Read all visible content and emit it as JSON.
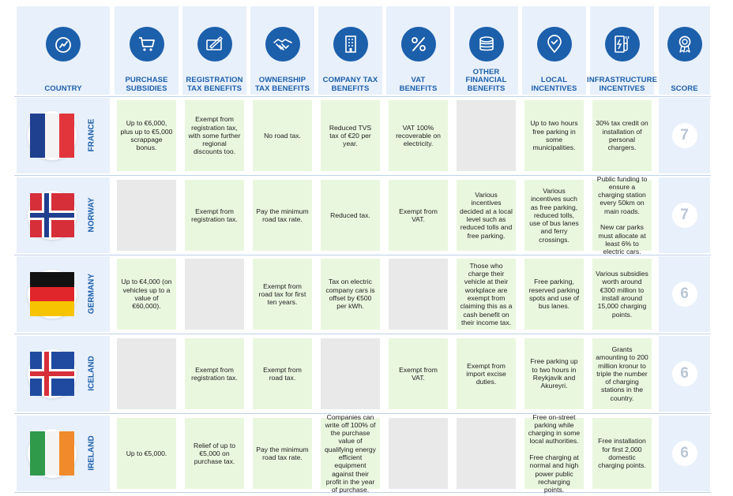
{
  "headers": {
    "country": "COUNTRY",
    "purchase": "PURCHASE\nSUBSIDIES",
    "registration": "REGISTRATION\nTAX BENEFITS",
    "ownership": "OWNERSHIP\nTAX BENEFITS",
    "company": "COMPANY TAX\nBENEFITS",
    "vat": "VAT\nBENEFITS",
    "other": "OTHER\nFINANCIAL\nBENEFITS",
    "local": "LOCAL\nINCENTIVES",
    "infra": "INFRASTRUCTURE\nINCENTIVES",
    "score": "SCORE"
  },
  "rows": [
    {
      "country": "FRANCE",
      "purchase": "Up to €6,000, plus up to €5,000 scrappage bonus.",
      "registration": "Exempt from registration tax, with some further regional discounts too.",
      "ownership": "No road tax.",
      "company": "Reduced TVS tax of €20 per year.",
      "vat": "VAT 100% recoverable on electricity.",
      "other": "",
      "local": "Up to two hours free parking in some municipalities.",
      "infra": "30% tax credit on installation of personal chargers.",
      "score": "7"
    },
    {
      "country": "NORWAY",
      "purchase": "",
      "registration": "Exempt from registration tax.",
      "ownership": "Pay the minimum road tax rate.",
      "company": "Reduced tax.",
      "vat": "Exempt from VAT.",
      "other": "Various incentives decided at a local level such as reduced tolls and free parking.",
      "local": "Various incentives such as free parking, reduced tolls, use of bus lanes and ferry crossings.",
      "infra": "Public funding to ensure a charging station every 50km on main roads.\n\nNew car parks must allocate at least 6% to electric cars.",
      "score": "7"
    },
    {
      "country": "GERMANY",
      "purchase": "Up to €4,000 (on vehicles up to a value of €60,000).",
      "registration": "",
      "ownership": "Exempt from road tax for first ten years.",
      "company": "Tax on electric company cars is offset by €500 per kWh.",
      "vat": "",
      "other": "Those who charge their vehicle at their workplace are exempt from claiming this as a cash benefit on their income tax.",
      "local": "Free parking, reserved parking spots and use of bus lanes.",
      "infra": "Various subsidies worth around €300 million to install around 15,000 charging points.",
      "score": "6"
    },
    {
      "country": "ICELAND",
      "purchase": "",
      "registration": "Exempt from registration tax.",
      "ownership": "Exempt from road tax.",
      "company": "",
      "vat": "Exempt from VAT.",
      "other": "Exempt from import excise duties.",
      "local": "Free parking up to two hours in Reykjavik and Akureyri.",
      "infra": "Grants amounting to 200 million kronur to triple the number of charging stations in the country.",
      "score": "6"
    },
    {
      "country": "IRELAND",
      "purchase": "Up to €5,000.",
      "registration": "Relief of up to €5,000 on purchase tax.",
      "ownership": "Pay the minimum road tax rate.",
      "company": "Companies can write off 100% of the purchase value of qualifying energy efficient equipment against their profit in the year of purchase.",
      "vat": "",
      "other": "",
      "local": "Free on-street parking while charging in some local authorities.\n\nFree charging at normal and high power public recharging points.",
      "infra": "Free installation for first 2,000 domestic charging points.",
      "score": "6"
    }
  ],
  "icons": {
    "country": "gauge-icon",
    "purchase": "shopping-cart-icon",
    "registration": "document-pen-icon",
    "ownership": "handshake-icon",
    "company": "building-icon",
    "vat": "percent-icon",
    "other": "coin-stack-icon",
    "local": "location-pin-check-icon",
    "infra": "charging-station-icon",
    "score": "award-ribbon-icon"
  },
  "colors": {
    "brand_blue": "#1c5fab",
    "header_bg": "#e8f0fb",
    "benefit_bg": "#eaf7df",
    "empty_bg": "#e9e9e9",
    "score_text": "#b9c6d8"
  }
}
